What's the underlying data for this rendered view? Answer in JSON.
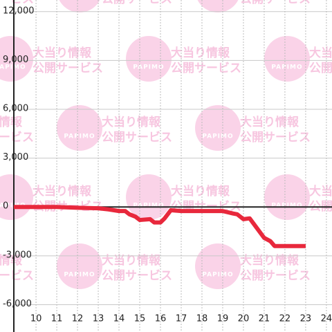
{
  "chart_data": {
    "type": "line",
    "x": [
      8.93,
      10,
      11,
      12,
      13,
      13.5,
      14,
      14.3,
      14.5,
      14.8,
      15,
      15.5,
      15.7,
      16,
      16.2,
      16.5,
      17,
      18,
      19,
      19.5,
      19.7,
      20,
      20.3,
      21,
      21.3,
      21.5,
      22,
      23
    ],
    "series": [
      {
        "name": null,
        "color": "#e8283c",
        "values": [
          0,
          0,
          0,
          -50,
          -80,
          -150,
          -250,
          -250,
          -450,
          -600,
          -800,
          -750,
          -950,
          -950,
          -700,
          -200,
          -250,
          -250,
          -250,
          -400,
          -450,
          -750,
          -700,
          -1900,
          -2100,
          -2400,
          -2400,
          -2400
        ]
      }
    ],
    "xlim": [
      8.93,
      24.27
    ],
    "xticks": [
      10,
      11,
      12,
      13,
      14,
      15,
      16,
      17,
      18,
      19,
      20,
      21,
      22,
      23,
      24
    ],
    "ylim": [
      -7680,
      12713
    ],
    "yticks": [
      {
        "value": 12000,
        "label": "12,000"
      },
      {
        "value": 9000,
        "label": "9,000"
      },
      {
        "value": 6000,
        "label": "6,000"
      },
      {
        "value": 3000,
        "label": "3,000"
      },
      0,
      {
        "value": -3000,
        "label": "-3,000"
      },
      {
        "value": -6000,
        "label": "-6,000"
      }
    ],
    "grid": true
  },
  "watermark": {
    "logo": "PAPIMO",
    "line1": "大当り情報",
    "line2": "公開サービス"
  }
}
